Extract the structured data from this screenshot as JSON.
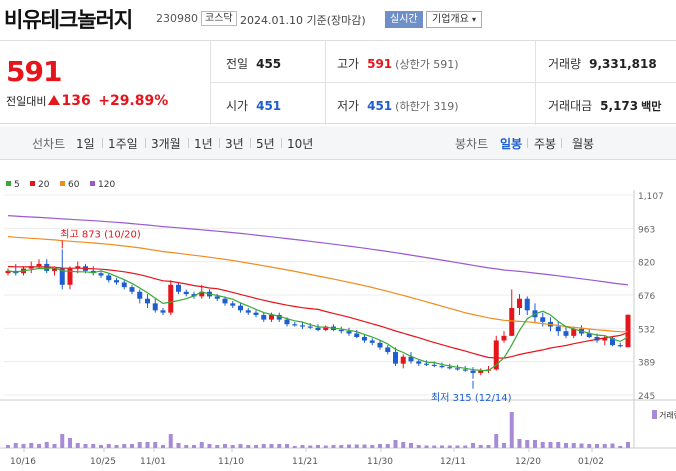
{
  "header": {
    "name": "비유테크놀러지",
    "code": "230980",
    "market": "코스닥",
    "date": "2024.01.10 기준(장마감)",
    "realtime": "실시간",
    "overview": "기업개요",
    "overview_caret": "▾"
  },
  "price": {
    "current": "591",
    "change_label": "전일대비",
    "change_value": "136",
    "change_pct": "+29.89%",
    "prev_label": "전일",
    "prev_value": "455",
    "high_label": "고가",
    "high_value": "591",
    "high_sub": "(상한가 591)",
    "volume_label": "거래량",
    "volume_value": "9,331,818",
    "open_label": "시가",
    "open_value": "451",
    "low_label": "저가",
    "low_value": "451",
    "low_sub": "(하한가 319)",
    "amount_label": "거래대금",
    "amount_value": "5,173",
    "amount_unit": "백만"
  },
  "line_tabs": {
    "label": "선차트",
    "items": [
      "1일",
      "1주일",
      "3개월",
      "1년",
      "3년",
      "5년",
      "10년"
    ]
  },
  "candle_tabs": {
    "label": "봉차트",
    "items": [
      "일봉",
      "주봉",
      "월봉"
    ],
    "active": 0
  },
  "colors": {
    "up": "#e5151c",
    "down": "#1e5ed0",
    "ma5": "#39a935",
    "ma20": "#e5151c",
    "ma60": "#f08c1e",
    "ma120": "#9b59d0",
    "volume": "#a78bd6"
  },
  "chart_data": {
    "type": "candlestick",
    "legend": [
      {
        "name": "5",
        "color": "#39a935"
      },
      {
        "name": "20",
        "color": "#e5151c"
      },
      {
        "name": "60",
        "color": "#f08c1e"
      },
      {
        "name": "120",
        "color": "#9b59d0"
      }
    ],
    "y_ticks": [
      "1,107",
      "963",
      "820",
      "676",
      "532",
      "389",
      "245"
    ],
    "ylim": [
      245,
      1107
    ],
    "x_ticks": [
      "10/16",
      "10/25",
      "11/01",
      "11/10",
      "11/21",
      "11/30",
      "12/11",
      "12/20",
      "01/02"
    ],
    "max_annotation": "최고 873 (10/20)",
    "min_annotation": "최저 315 (12/14)",
    "volume_label": "거래량",
    "candles": [
      [
        770,
        790,
        760,
        780
      ],
      [
        780,
        810,
        760,
        770
      ],
      [
        770,
        800,
        760,
        790
      ],
      [
        790,
        820,
        770,
        800
      ],
      [
        800,
        830,
        790,
        810
      ],
      [
        810,
        830,
        770,
        780
      ],
      [
        780,
        800,
        760,
        790
      ],
      [
        790,
        873,
        700,
        720
      ],
      [
        720,
        800,
        700,
        790
      ],
      [
        790,
        820,
        770,
        800
      ],
      [
        800,
        810,
        770,
        780
      ],
      [
        780,
        800,
        760,
        770
      ],
      [
        770,
        780,
        750,
        760
      ],
      [
        760,
        770,
        730,
        740
      ],
      [
        740,
        750,
        720,
        730
      ],
      [
        730,
        740,
        700,
        710
      ],
      [
        710,
        720,
        680,
        690
      ],
      [
        690,
        700,
        640,
        660
      ],
      [
        660,
        680,
        620,
        640
      ],
      [
        640,
        660,
        600,
        610
      ],
      [
        610,
        620,
        590,
        600
      ],
      [
        600,
        740,
        590,
        720
      ],
      [
        720,
        730,
        680,
        690
      ],
      [
        690,
        700,
        670,
        680
      ],
      [
        680,
        690,
        660,
        670
      ],
      [
        670,
        720,
        660,
        690
      ],
      [
        690,
        700,
        660,
        670
      ],
      [
        670,
        680,
        650,
        660
      ],
      [
        660,
        670,
        630,
        640
      ],
      [
        640,
        650,
        620,
        630
      ],
      [
        630,
        640,
        600,
        610
      ],
      [
        610,
        620,
        590,
        600
      ],
      [
        600,
        610,
        580,
        590
      ],
      [
        590,
        600,
        560,
        570
      ],
      [
        570,
        600,
        560,
        590
      ],
      [
        590,
        600,
        560,
        570
      ],
      [
        570,
        580,
        540,
        550
      ],
      [
        550,
        560,
        540,
        545
      ],
      [
        545,
        560,
        530,
        540
      ],
      [
        540,
        555,
        530,
        535
      ],
      [
        535,
        550,
        520,
        525
      ],
      [
        525,
        545,
        520,
        540
      ],
      [
        540,
        550,
        520,
        525
      ],
      [
        525,
        540,
        510,
        520
      ],
      [
        520,
        535,
        500,
        510
      ],
      [
        510,
        525,
        490,
        495
      ],
      [
        495,
        505,
        470,
        480
      ],
      [
        480,
        490,
        460,
        470
      ],
      [
        470,
        480,
        440,
        450
      ],
      [
        450,
        460,
        420,
        430
      ],
      [
        430,
        450,
        370,
        380
      ],
      [
        380,
        420,
        360,
        410
      ],
      [
        410,
        430,
        380,
        390
      ],
      [
        390,
        400,
        370,
        380
      ],
      [
        380,
        395,
        370,
        375
      ],
      [
        375,
        390,
        365,
        370
      ],
      [
        370,
        385,
        360,
        365
      ],
      [
        365,
        380,
        355,
        360
      ],
      [
        360,
        375,
        350,
        355
      ],
      [
        355,
        370,
        345,
        350
      ],
      [
        350,
        365,
        315,
        340
      ],
      [
        340,
        360,
        330,
        350
      ],
      [
        350,
        370,
        340,
        355
      ],
      [
        355,
        500,
        350,
        480
      ],
      [
        480,
        520,
        470,
        500
      ],
      [
        500,
        700,
        500,
        620
      ],
      [
        620,
        680,
        590,
        660
      ],
      [
        660,
        670,
        590,
        610
      ],
      [
        610,
        640,
        560,
        580
      ],
      [
        580,
        600,
        540,
        560
      ],
      [
        560,
        580,
        520,
        540
      ],
      [
        540,
        560,
        500,
        520
      ],
      [
        520,
        540,
        490,
        500
      ],
      [
        500,
        540,
        490,
        530
      ],
      [
        530,
        545,
        500,
        510
      ],
      [
        510,
        530,
        490,
        495
      ],
      [
        495,
        510,
        470,
        480
      ],
      [
        480,
        500,
        460,
        490
      ],
      [
        490,
        500,
        455,
        460
      ],
      [
        460,
        470,
        450,
        455
      ],
      [
        451,
        591,
        451,
        591
      ]
    ]
  }
}
